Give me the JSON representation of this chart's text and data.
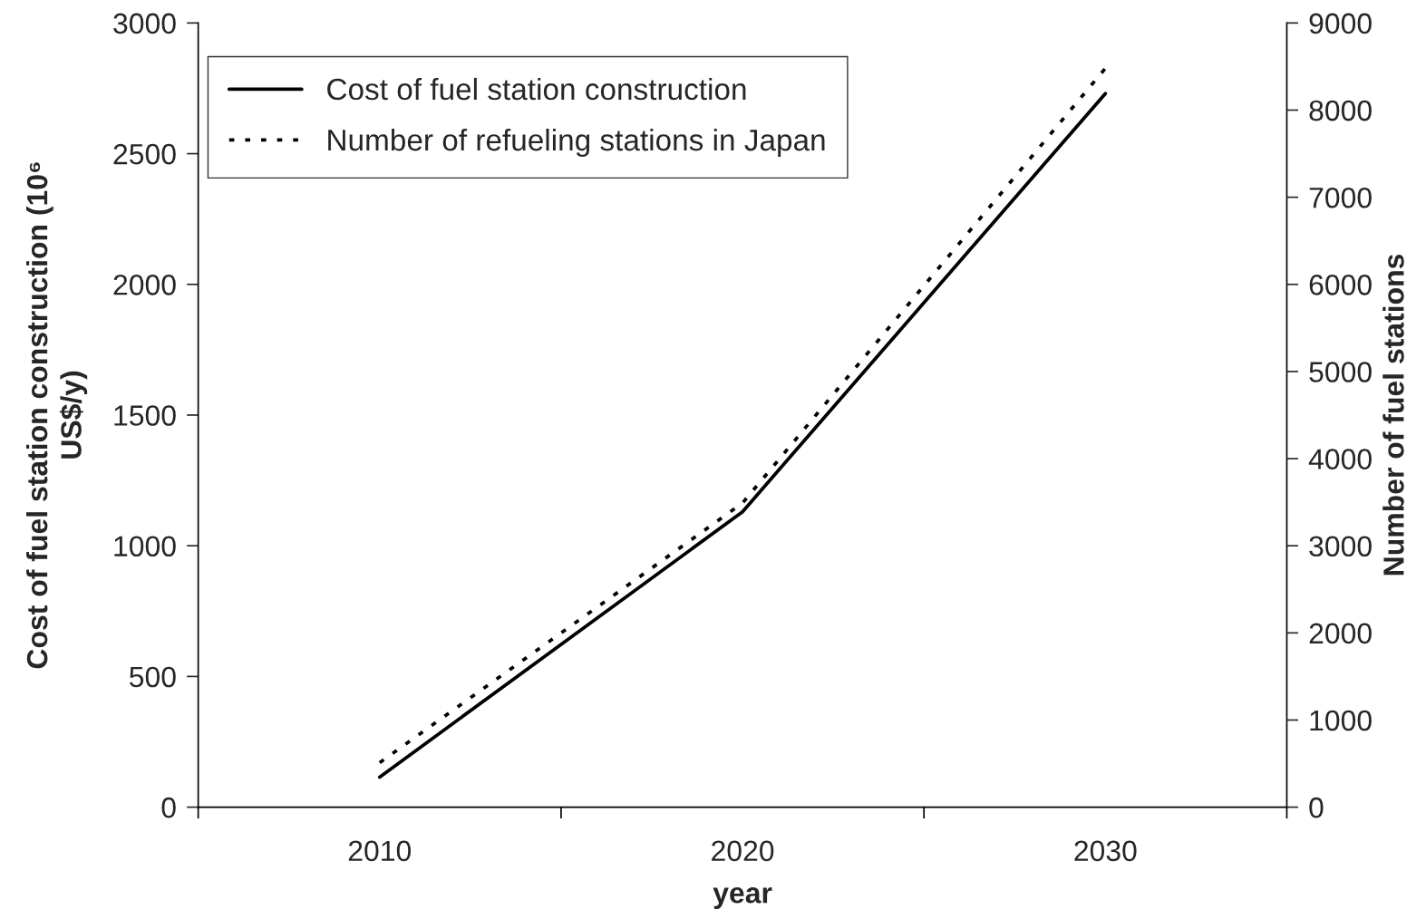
{
  "chart_data": {
    "type": "line",
    "x": [
      2010,
      2020,
      2030
    ],
    "xlabel": "year",
    "ylabel": "Cost of fuel station construction (10⁶ US$/y)",
    "y2label": "Number of fuel stations",
    "xlim": [
      2005,
      2035
    ],
    "xticks": [
      {
        "value": 2005,
        "label": null
      },
      2010,
      {
        "value": 2015,
        "label": null
      },
      2020,
      {
        "value": 2025,
        "label": null
      },
      2030,
      {
        "value": 2035,
        "label": null
      }
    ],
    "ylim": [
      0,
      3000
    ],
    "yticks": [
      0,
      500,
      1000,
      1500,
      2000,
      2500,
      3000
    ],
    "y2lim": [
      0,
      9000
    ],
    "y2ticks": [
      0,
      1000,
      2000,
      3000,
      4000,
      5000,
      6000,
      7000,
      8000,
      9000
    ],
    "series": [
      {
        "name": "Cost of fuel station construction",
        "color": "#000000",
        "values": [
          115,
          1130,
          2730
        ],
        "line_style": "solid"
      },
      {
        "name": "Number of refueling stations in Japan",
        "color": "#000000",
        "values": [
          510,
          3490,
          8480
        ],
        "axis": "y2",
        "line_style": "dotted"
      }
    ],
    "legend": "top left"
  }
}
